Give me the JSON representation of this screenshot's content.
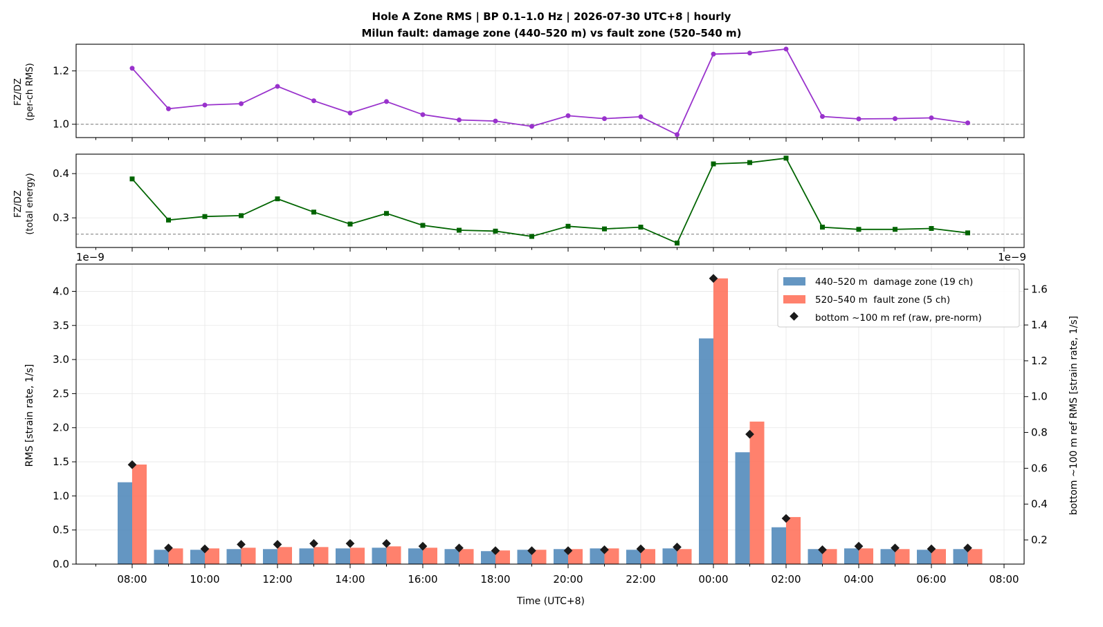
{
  "figure": {
    "title_line1": "Hole A Zone RMS  |  BP 0.1–1.0 Hz  |  2026-07-30 UTC+8  |  hourly",
    "title_line2": "Milun fault: damage zone (440–520 m) vs fault zone (520–540 m)",
    "xlabel": "Time (UTC+8)",
    "x_tick_labels": [
      "08:00",
      "10:00",
      "12:00",
      "14:00",
      "16:00",
      "18:00",
      "20:00",
      "22:00",
      "00:00",
      "02:00",
      "04:00",
      "06:00",
      "08:00"
    ]
  },
  "chart_data": [
    {
      "type": "line",
      "ylabel_line1": "FZ/DZ",
      "ylabel_line2": "(per-ch RMS)",
      "ylim": [
        0.95,
        1.3
      ],
      "y_ticks": [
        1.0,
        1.2
      ],
      "y_tick_labels": [
        "1.0",
        "1.2"
      ],
      "reference_line": 1.0,
      "color": "#9932cc",
      "marker": "circle",
      "x_hours": [
        0,
        1,
        2,
        3,
        4,
        5,
        6,
        7,
        8,
        9,
        10,
        11,
        12,
        13,
        14,
        15,
        16,
        17,
        18,
        19,
        20,
        21,
        22,
        23
      ],
      "values": [
        1.21,
        1.058,
        1.072,
        1.077,
        1.142,
        1.088,
        1.042,
        1.085,
        1.036,
        1.016,
        1.012,
        0.992,
        1.032,
        1.021,
        1.028,
        0.961,
        1.263,
        1.267,
        1.282,
        1.029,
        1.02,
        1.021,
        1.024,
        1.005
      ]
    },
    {
      "type": "line",
      "ylabel_line1": "FZ/DZ",
      "ylabel_line2": "(total energy)",
      "ylim": [
        0.233,
        0.444
      ],
      "y_ticks": [
        0.3,
        0.4
      ],
      "y_tick_labels": [
        "0.3",
        "0.4"
      ],
      "reference_line": 0.263,
      "color": "#006400",
      "marker": "square",
      "x_hours": [
        0,
        1,
        2,
        3,
        4,
        5,
        6,
        7,
        8,
        9,
        10,
        11,
        12,
        13,
        14,
        15,
        16,
        17,
        18,
        19,
        20,
        21,
        22,
        23
      ],
      "values": [
        0.388,
        0.295,
        0.303,
        0.305,
        0.343,
        0.313,
        0.286,
        0.31,
        0.283,
        0.272,
        0.27,
        0.258,
        0.281,
        0.275,
        0.279,
        0.243,
        0.422,
        0.425,
        0.435,
        0.279,
        0.274,
        0.274,
        0.276,
        0.266
      ]
    },
    {
      "type": "bar",
      "ylabel": "RMS  [strain rate, 1/s]",
      "ylabel_right": "bottom ~100 m ref RMS  [strain rate, 1/s]",
      "scale_left": "1e−9",
      "scale_right": "1e−9",
      "ylim": [
        0,
        4.4
      ],
      "y_ticks": [
        0,
        0.5,
        1.0,
        1.5,
        2.0,
        2.5,
        3.0,
        3.5,
        4.0
      ],
      "y_tick_labels": [
        "0.0",
        "0.5",
        "1.0",
        "1.5",
        "2.0",
        "2.5",
        "3.0",
        "3.5",
        "4.0"
      ],
      "ylim_right": [
        0.065,
        1.74
      ],
      "y_ticks_right": [
        0.2,
        0.4,
        0.6,
        0.8,
        1.0,
        1.2,
        1.4,
        1.6
      ],
      "y_tick_labels_right": [
        "0.2",
        "0.4",
        "0.6",
        "0.8",
        "1.0",
        "1.2",
        "1.4",
        "1.6"
      ],
      "x_hours": [
        0,
        1,
        2,
        3,
        4,
        5,
        6,
        7,
        8,
        9,
        10,
        11,
        12,
        13,
        14,
        15,
        16,
        17,
        18,
        19,
        20,
        21,
        22,
        23
      ],
      "series": [
        {
          "name": "440–520 m  damage zone (19 ch)",
          "color": "#4f88ba",
          "values": [
            1.2,
            0.21,
            0.21,
            0.22,
            0.22,
            0.23,
            0.23,
            0.24,
            0.23,
            0.22,
            0.19,
            0.21,
            0.22,
            0.23,
            0.21,
            0.23,
            3.31,
            1.64,
            0.54,
            0.22,
            0.23,
            0.22,
            0.21,
            0.22
          ]
        },
        {
          "name": "520–540 m  fault zone (5 ch)",
          "color": "#ff6f59",
          "values": [
            1.46,
            0.23,
            0.23,
            0.24,
            0.25,
            0.25,
            0.24,
            0.26,
            0.24,
            0.22,
            0.2,
            0.21,
            0.22,
            0.23,
            0.22,
            0.22,
            4.19,
            2.09,
            0.69,
            0.22,
            0.23,
            0.22,
            0.22,
            0.22
          ]
        },
        {
          "name": "bottom ~100 m ref (raw, pre-norm)",
          "color": "#1a1a1a",
          "axis": "right",
          "marker": "diamond",
          "values": [
            0.62,
            0.155,
            0.15,
            0.175,
            0.175,
            0.18,
            0.18,
            0.18,
            0.165,
            0.155,
            0.14,
            0.14,
            0.14,
            0.145,
            0.15,
            0.16,
            1.66,
            0.79,
            0.32,
            0.145,
            0.165,
            0.155,
            0.15,
            0.155
          ]
        }
      ]
    }
  ]
}
